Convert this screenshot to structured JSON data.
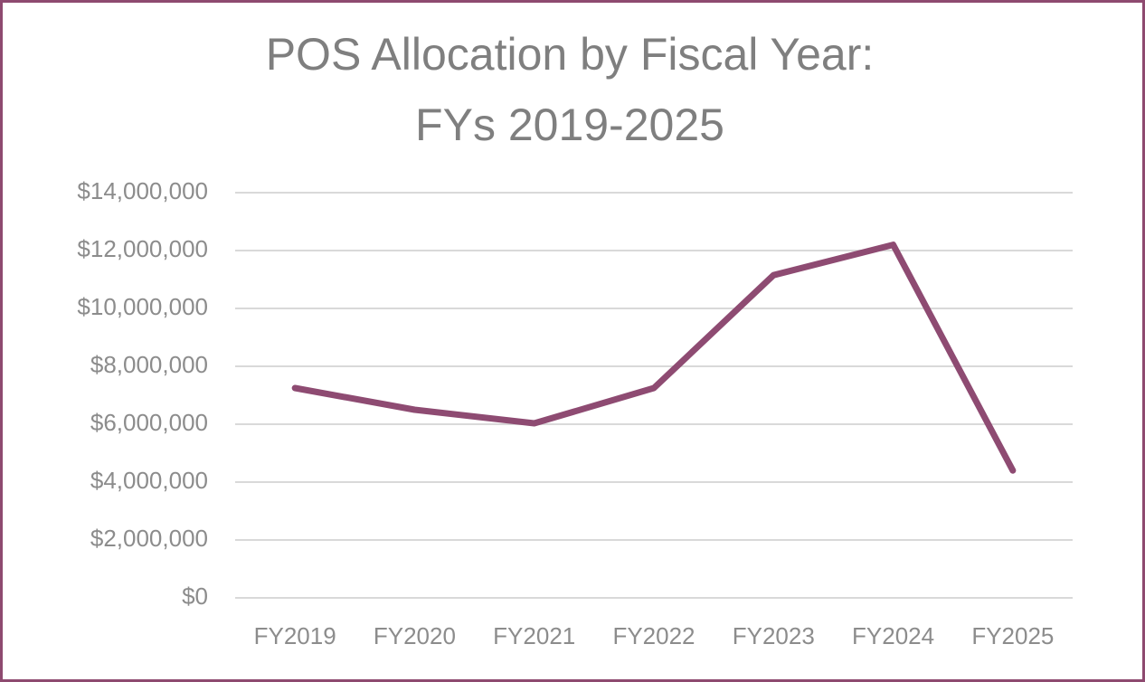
{
  "chart_data": {
    "type": "line",
    "title": [
      "POS Allocation by Fiscal Year:",
      "FYs 2019-2025"
    ],
    "categories": [
      "FY2019",
      "FY2020",
      "FY2021",
      "FY2022",
      "FY2023",
      "FY2024",
      "FY2025"
    ],
    "series": [
      {
        "color": "#8e4b72",
        "values": [
          7250000,
          6500000,
          6030000,
          7250000,
          11150000,
          12200000,
          4400000
        ]
      }
    ],
    "ylim": [
      0,
      14000000
    ],
    "yticks": [
      {
        "value": 0,
        "label": "$0"
      },
      {
        "value": 2000000,
        "label": "$2,000,000"
      },
      {
        "value": 4000000,
        "label": "$4,000,000"
      },
      {
        "value": 6000000,
        "label": "$6,000,000"
      },
      {
        "value": 8000000,
        "label": "$8,000,000"
      },
      {
        "value": 10000000,
        "label": "$10,000,000"
      },
      {
        "value": 12000000,
        "label": "$12,000,000"
      },
      {
        "value": 14000000,
        "label": "$14,000,000"
      }
    ],
    "grid": true
  }
}
